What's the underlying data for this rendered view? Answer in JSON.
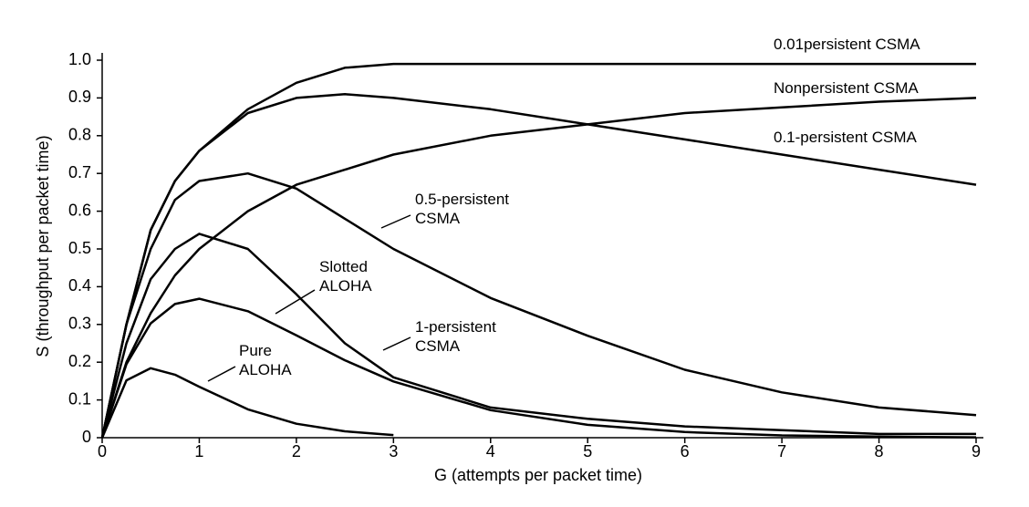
{
  "chart_data": {
    "type": "line",
    "x_label": "G (attempts per packet time)",
    "y_label": "S (throughput per packet time)",
    "x": [
      0,
      0.25,
      0.5,
      0.75,
      1,
      1.5,
      2,
      2.5,
      3,
      4,
      5,
      6,
      7,
      8,
      9
    ],
    "series": [
      {
        "name": "0.01persistent CSMA",
        "color": "#000000",
        "values": [
          0,
          0.3,
          0.55,
          0.68,
          0.76,
          0.87,
          0.94,
          0.98,
          0.99,
          0.99,
          0.99,
          0.99,
          0.99,
          0.99,
          0.99
        ]
      },
      {
        "name": "Nonpersistent CSMA",
        "color": "#000000",
        "values": [
          0,
          0.2,
          0.33,
          0.43,
          0.5,
          0.6,
          0.67,
          0.71,
          0.75,
          0.8,
          0.83,
          0.86,
          0.875,
          0.89,
          0.9
        ]
      },
      {
        "name": "0.1-persistent CSMA",
        "color": "#000000",
        "values": [
          0,
          0.3,
          0.55,
          0.68,
          0.76,
          0.86,
          0.9,
          0.91,
          0.9,
          0.87,
          0.83,
          0.79,
          0.75,
          0.71,
          0.67
        ]
      },
      {
        "name": "0.5-persistent CSMA",
        "color": "#000000",
        "values": [
          0,
          0.3,
          0.5,
          0.63,
          0.68,
          0.7,
          0.66,
          0.58,
          0.5,
          0.37,
          0.27,
          0.18,
          0.12,
          0.08,
          0.06
        ]
      },
      {
        "name": "Slotted ALOHA",
        "color": "#000000",
        "values": [
          0,
          0.195,
          0.303,
          0.354,
          0.368,
          0.335,
          0.271,
          0.205,
          0.149,
          0.073,
          0.034,
          0.015,
          0.006,
          0.003,
          0.001
        ]
      },
      {
        "name": "1-persistent CSMA",
        "color": "#000000",
        "values": [
          0,
          0.25,
          0.42,
          0.5,
          0.54,
          0.5,
          0.38,
          0.25,
          0.16,
          0.08,
          0.05,
          0.03,
          0.02,
          0.01,
          0.01
        ]
      },
      {
        "name": "Pure ALOHA",
        "color": "#000000",
        "values": [
          0,
          0.152,
          0.184,
          0.167,
          0.135,
          0.075,
          0.037,
          0.017,
          0.007,
          null,
          null,
          null,
          null,
          null,
          null
        ]
      }
    ],
    "xlim": [
      0,
      9
    ],
    "ylim": [
      0,
      1
    ],
    "xticks": [
      0,
      1,
      2,
      3,
      4,
      5,
      6,
      7,
      8,
      9
    ],
    "yticks": [
      0,
      0.1,
      0.2,
      0.3,
      0.4,
      0.5,
      0.6,
      0.7,
      0.8,
      0.9,
      {
        "value": 1,
        "label": "1.0"
      }
    ],
    "grid": false
  }
}
